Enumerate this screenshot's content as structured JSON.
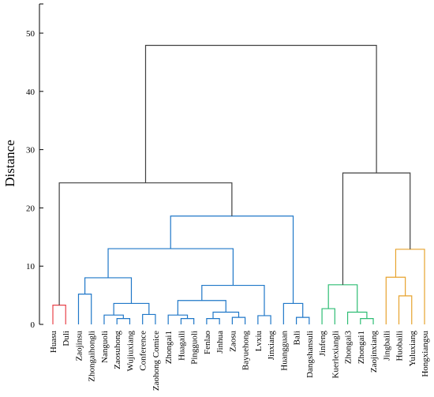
{
  "chart_data": {
    "type": "dendrogram",
    "title": "",
    "ylabel": "Distance",
    "xlabel": "",
    "ylim": [
      0,
      55
    ],
    "y_ticks": [
      0,
      10,
      20,
      30,
      40,
      50
    ],
    "grid": false,
    "legend": "none",
    "leaves": [
      "Huasu",
      "Duli",
      "Zaojinsu",
      "Zhongaihongli",
      "Nanguoli",
      "Zaosuhong",
      "Wujiuxiang",
      "Conference",
      "Zaohong Comice",
      "Zhongai1",
      "Huagaili",
      "Pingguoli",
      "Fenlao",
      "Jinhua",
      "Zaosu",
      "Bayuehong",
      "Lvxiu",
      "Jinxiang",
      "Huangguan",
      "Bali",
      "Dangshansuli",
      "Jinfeng",
      "Kuerlexiangli",
      "Zhongai3",
      "Zhongai1",
      "Zaojinxiang",
      "Jingbaili",
      "Huobaili",
      "Yuluxiang",
      "Hongxiangsu"
    ],
    "merges": [
      {
        "id": "c1",
        "left": "Huasu",
        "right": "Duli",
        "height": 3.3,
        "color": "#e8424a"
      },
      {
        "id": "c2",
        "left": "Zaojinsu",
        "right": "Zhongaihongli",
        "height": 5.2,
        "color": "#1f77c8"
      },
      {
        "id": "c3",
        "left": "Zaosuhong",
        "right": "Wujiuxiang",
        "height": 1.0,
        "color": "#1f77c8"
      },
      {
        "id": "c4",
        "left": "Nanguoli",
        "right": "c3",
        "height": 1.6,
        "color": "#1f77c8"
      },
      {
        "id": "c5",
        "left": "Conference",
        "right": "Zaohong Comice",
        "height": 1.7,
        "color": "#1f77c8"
      },
      {
        "id": "c6",
        "left": "c4",
        "right": "c5",
        "height": 3.6,
        "color": "#1f77c8"
      },
      {
        "id": "c7",
        "left": "c2",
        "right": "c6",
        "height": 8.0,
        "color": "#1f77c8"
      },
      {
        "id": "c8",
        "left": "Huagaili",
        "right": "Pingguoli",
        "height": 1.0,
        "color": "#1f77c8"
      },
      {
        "id": "c9",
        "left": "Zhongai1",
        "right": "c8",
        "height": 1.6,
        "color": "#1f77c8"
      },
      {
        "id": "c10",
        "left": "Fenlao",
        "right": "Jinhua",
        "height": 1.0,
        "color": "#1f77c8"
      },
      {
        "id": "c11",
        "left": "Zaosu",
        "right": "Bayuehong",
        "height": 1.2,
        "color": "#1f77c8"
      },
      {
        "id": "c12",
        "left": "c10",
        "right": "c11",
        "height": 2.1,
        "color": "#1f77c8"
      },
      {
        "id": "c13",
        "left": "c9",
        "right": "c12",
        "height": 4.1,
        "color": "#1f77c8"
      },
      {
        "id": "c14",
        "left": "Lvxiu",
        "right": "Jinxiang",
        "height": 1.5,
        "color": "#1f77c8"
      },
      {
        "id": "c15",
        "left": "c13",
        "right": "c14",
        "height": 6.7,
        "color": "#1f77c8"
      },
      {
        "id": "c16",
        "left": "c7",
        "right": "c15",
        "height": 13.0,
        "color": "#1f77c8"
      },
      {
        "id": "c17",
        "left": "Bali",
        "right": "Dangshansuli",
        "height": 1.2,
        "color": "#1f77c8"
      },
      {
        "id": "c18",
        "left": "Huangguan",
        "right": "c17",
        "height": 3.6,
        "color": "#1f77c8"
      },
      {
        "id": "c19",
        "left": "c16",
        "right": "c18",
        "height": 18.6,
        "color": "#1f77c8"
      },
      {
        "id": "c20",
        "left": "c1",
        "right": "c19",
        "height": 24.3,
        "color": "#404040"
      },
      {
        "id": "c21",
        "left": "Jinfeng",
        "right": "Kuerlexiangli",
        "height": 2.7,
        "color": "#2ebd74"
      },
      {
        "id": "c22",
        "left": "Zhongai1#2",
        "right": "Zaojinxiang",
        "height": 1.0,
        "color": "#2ebd74"
      },
      {
        "id": "c23",
        "left": "Zhongai3",
        "right": "c22",
        "height": 2.1,
        "color": "#2ebd74"
      },
      {
        "id": "c24",
        "left": "c21",
        "right": "c23",
        "height": 6.8,
        "color": "#2ebd74"
      },
      {
        "id": "c25",
        "left": "Huobaili",
        "right": "Yuluxiang",
        "height": 4.9,
        "color": "#e7a32e"
      },
      {
        "id": "c26",
        "left": "Jingbaili",
        "right": "c25",
        "height": 8.1,
        "color": "#e7a32e"
      },
      {
        "id": "c27",
        "left": "c26",
        "right": "Hongxiangsu",
        "height": 12.9,
        "color": "#e7a32e"
      },
      {
        "id": "c28",
        "left": "c24",
        "right": "c27",
        "height": 26.0,
        "color": "#404040"
      },
      {
        "id": "c29",
        "left": "c20",
        "right": "c28",
        "height": 47.9,
        "color": "#404040"
      }
    ]
  }
}
